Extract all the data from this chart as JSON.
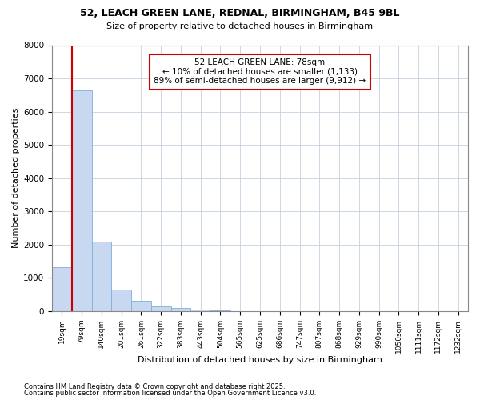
{
  "title1": "52, LEACH GREEN LANE, REDNAL, BIRMINGHAM, B45 9BL",
  "title2": "Size of property relative to detached houses in Birmingham",
  "xlabel": "Distribution of detached houses by size in Birmingham",
  "ylabel": "Number of detached properties",
  "categories": [
    "19sqm",
    "79sqm",
    "140sqm",
    "201sqm",
    "261sqm",
    "322sqm",
    "383sqm",
    "443sqm",
    "504sqm",
    "565sqm",
    "625sqm",
    "686sqm",
    "747sqm",
    "807sqm",
    "868sqm",
    "929sqm",
    "990sqm",
    "1050sqm",
    "1111sqm",
    "1172sqm",
    "1232sqm"
  ],
  "values": [
    1330,
    6650,
    2100,
    640,
    310,
    150,
    85,
    50,
    15,
    5,
    3,
    0,
    0,
    0,
    0,
    0,
    0,
    0,
    0,
    0,
    0
  ],
  "bar_color": "#c8d8f0",
  "bar_edge_color": "#7fafd8",
  "vline_color": "#cc0000",
  "vline_x_index": 1,
  "annotation_text": "52 LEACH GREEN LANE: 78sqm\n← 10% of detached houses are smaller (1,133)\n89% of semi-detached houses are larger (9,912) →",
  "annotation_box_color": "#ffffff",
  "annotation_edge_color": "#cc0000",
  "ylim": [
    0,
    8000
  ],
  "yticks": [
    0,
    1000,
    2000,
    3000,
    4000,
    5000,
    6000,
    7000,
    8000
  ],
  "footnote1": "Contains HM Land Registry data © Crown copyright and database right 2025.",
  "footnote2": "Contains public sector information licensed under the Open Government Licence v3.0.",
  "background_color": "#ffffff",
  "plot_background": "#ffffff",
  "grid_color": "#c8d0e0"
}
